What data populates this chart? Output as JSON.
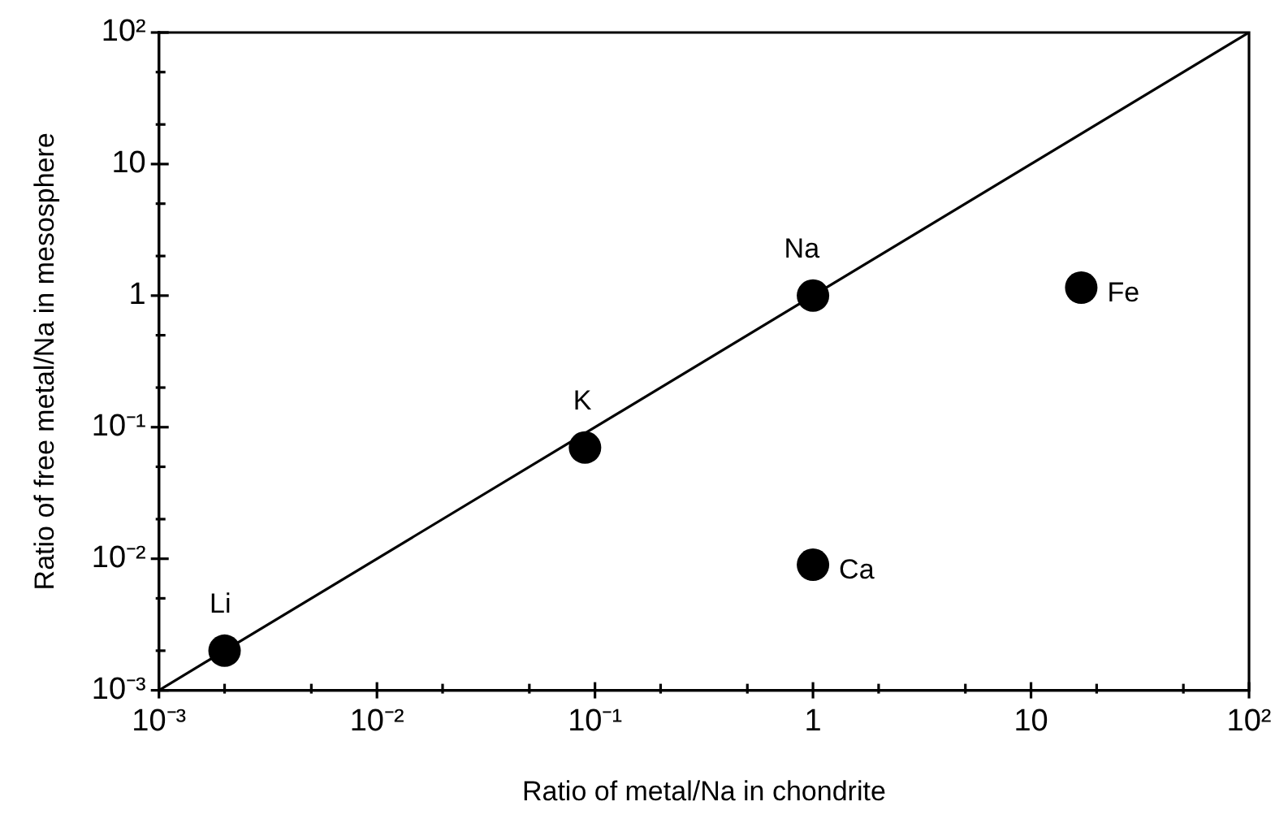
{
  "chart_data": {
    "type": "scatter",
    "xlabel": "Ratio of metal/Na in chondrite",
    "ylabel": "Ratio of free metal/Na in mesosphere",
    "log": "xy",
    "marker": "circle",
    "xlim": [
      0.001,
      100
    ],
    "ylim": [
      0.001,
      100
    ],
    "xticks": [
      {
        "value": 0.001,
        "label": "10⁻³"
      },
      {
        "value": 0.002,
        "label": null
      },
      {
        "value": 0.005,
        "label": null
      },
      {
        "value": 0.01,
        "label": "10⁻²"
      },
      {
        "value": 0.02,
        "label": null
      },
      {
        "value": 0.05,
        "label": null
      },
      {
        "value": 0.1,
        "label": "10⁻¹"
      },
      {
        "value": 0.2,
        "label": null
      },
      {
        "value": 0.5,
        "label": null
      },
      1,
      {
        "value": 2,
        "label": null
      },
      {
        "value": 5,
        "label": null
      },
      10,
      {
        "value": 20,
        "label": null
      },
      {
        "value": 50,
        "label": null
      },
      {
        "value": 100,
        "label": "10²"
      }
    ],
    "yticks": [
      {
        "value": 0.001,
        "label": "10⁻³"
      },
      {
        "value": 0.002,
        "label": null
      },
      {
        "value": 0.005,
        "label": null
      },
      {
        "value": 0.01,
        "label": "10⁻²"
      },
      {
        "value": 0.02,
        "label": null
      },
      {
        "value": 0.05,
        "label": null
      },
      {
        "value": 0.1,
        "label": "10⁻¹"
      },
      {
        "value": 0.2,
        "label": null
      },
      {
        "value": 0.5,
        "label": null
      },
      1,
      {
        "value": 2,
        "label": null
      },
      {
        "value": 5,
        "label": null
      },
      10,
      {
        "value": 20,
        "label": null
      },
      {
        "value": 50,
        "label": null
      },
      {
        "value": 100,
        "label": "10²"
      }
    ],
    "series": [
      {
        "type": "line",
        "color": "#000000",
        "x": [
          0.001,
          100
        ],
        "values": [
          0.001,
          100
        ],
        "marker": "none"
      },
      {
        "color": "#000000",
        "x": [
          0.002,
          0.09,
          1,
          1,
          17
        ],
        "values": [
          0.002,
          0.07,
          1,
          0.009,
          1.15
        ]
      }
    ],
    "annotations": [
      {
        "text": "Li",
        "x": 0.002,
        "y": 0.002
      },
      {
        "text": "K",
        "x": 0.09,
        "y": 0.07
      },
      {
        "text": "Na",
        "x": 1,
        "y": 1
      },
      {
        "text": "Fe",
        "x": 17,
        "y": 1.15
      },
      {
        "text": "Ca",
        "x": 1,
        "y": 0.009
      }
    ]
  }
}
